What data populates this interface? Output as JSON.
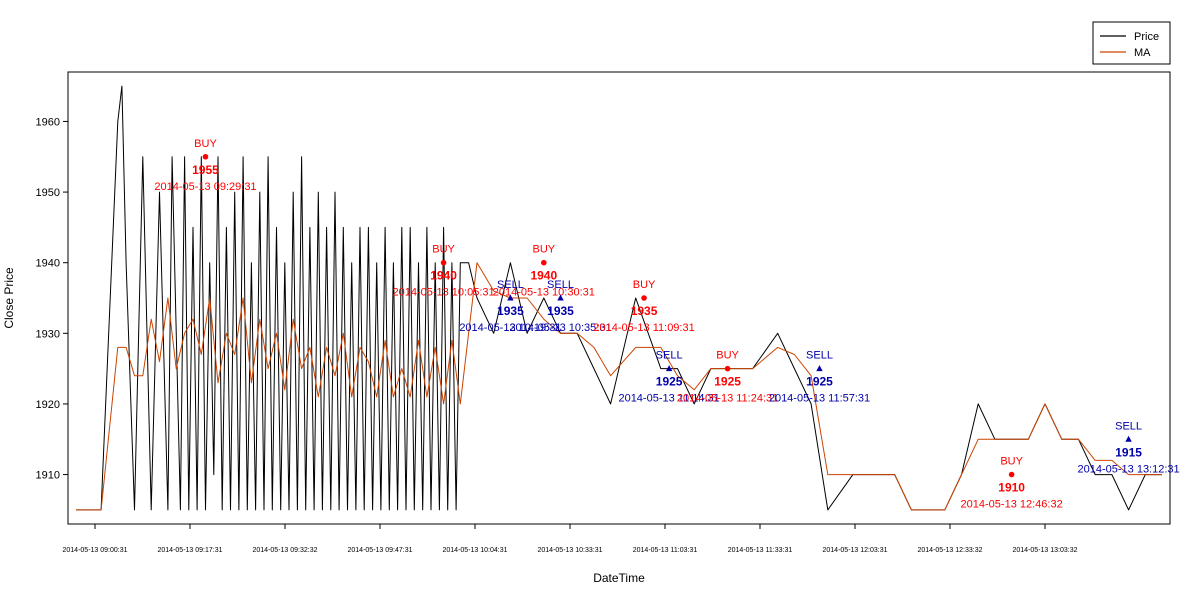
{
  "chart_data": {
    "type": "line",
    "xlabel": "DateTime",
    "ylabel": "Close Price",
    "ylim": [
      1903,
      1967
    ],
    "y_ticks": [
      1910,
      1920,
      1930,
      1940,
      1950,
      1960
    ],
    "x_tick_labels": [
      "2014-05-13 09:00:31",
      "2014-05-13 09:17:31",
      "2014-05-13 09:32:32",
      "2014-05-13 09:47:31",
      "2014-05-13 10:04:31",
      "2014-05-13 10:33:31",
      "2014-05-13 11:03:31",
      "2014-05-13 11:33:31",
      "2014-05-13 12:03:31",
      "2014-05-13 12:33:32",
      "2014-05-13 13:03:32"
    ],
    "legend": {
      "position": "top-right",
      "entries": [
        {
          "name": "Price",
          "color": "#000000"
        },
        {
          "name": "MA",
          "color": "#cc4400"
        }
      ]
    },
    "series": [
      {
        "name": "Price",
        "color": "#000000",
        "x": [
          0,
          6,
          10,
          11,
          12,
          14,
          16,
          18,
          20,
          22,
          23,
          25,
          26,
          27,
          28,
          29,
          30,
          31,
          32,
          33,
          34,
          35,
          36,
          37,
          38,
          39,
          40,
          41,
          42,
          43,
          44,
          45,
          46,
          47,
          48,
          49,
          50,
          51,
          52,
          53,
          54,
          55,
          56,
          57,
          58,
          59,
          60,
          61,
          62,
          63,
          64,
          65,
          66,
          67,
          68,
          69,
          70,
          71,
          72,
          73,
          74,
          75,
          76,
          77,
          78,
          79,
          80,
          81,
          82,
          83,
          84,
          85,
          86,
          87,
          88,
          89,
          90,
          91,
          92,
          93,
          94,
          96,
          100,
          104,
          108,
          112,
          116,
          120,
          124,
          128,
          134,
          140,
          144,
          148,
          152,
          156,
          162,
          168,
          172,
          176,
          180,
          186,
          192,
          196,
          200,
          204,
          208,
          212,
          216,
          220,
          224,
          228,
          232,
          236,
          240,
          244,
          248,
          252,
          256,
          260
        ],
        "y": [
          1905,
          1905,
          1960,
          1965,
          1940,
          1905,
          1955,
          1905,
          1950,
          1905,
          1955,
          1905,
          1955,
          1905,
          1945,
          1905,
          1955,
          1905,
          1940,
          1910,
          1955,
          1905,
          1945,
          1905,
          1950,
          1905,
          1955,
          1905,
          1940,
          1905,
          1950,
          1905,
          1955,
          1905,
          1945,
          1905,
          1940,
          1905,
          1950,
          1905,
          1955,
          1905,
          1945,
          1905,
          1950,
          1905,
          1945,
          1905,
          1950,
          1905,
          1945,
          1905,
          1940,
          1905,
          1945,
          1905,
          1945,
          1905,
          1940,
          1905,
          1945,
          1905,
          1940,
          1905,
          1945,
          1905,
          1945,
          1905,
          1940,
          1905,
          1945,
          1905,
          1940,
          1905,
          1945,
          1905,
          1940,
          1905,
          1940,
          1940,
          1940,
          1935,
          1930,
          1940,
          1930,
          1935,
          1930,
          1930,
          1925,
          1920,
          1935,
          1925,
          1925,
          1920,
          1925,
          1925,
          1925,
          1930,
          1925,
          1920,
          1905,
          1910,
          1910,
          1910,
          1905,
          1905,
          1905,
          1910,
          1920,
          1915,
          1915,
          1915,
          1920,
          1915,
          1915,
          1910,
          1910,
          1905,
          1910,
          1910
        ]
      },
      {
        "name": "MA",
        "color": "#cc4400",
        "x": [
          0,
          6,
          10,
          12,
          14,
          16,
          18,
          20,
          22,
          24,
          26,
          28,
          30,
          32,
          34,
          36,
          38,
          40,
          42,
          44,
          46,
          48,
          50,
          52,
          54,
          56,
          58,
          60,
          62,
          64,
          66,
          68,
          70,
          72,
          74,
          76,
          78,
          80,
          82,
          84,
          86,
          88,
          90,
          92,
          94,
          96,
          100,
          104,
          108,
          112,
          116,
          120,
          124,
          128,
          134,
          140,
          144,
          148,
          152,
          156,
          162,
          168,
          172,
          176,
          180,
          186,
          192,
          196,
          200,
          204,
          208,
          212,
          216,
          220,
          224,
          228,
          232,
          236,
          240,
          244,
          248,
          252,
          256,
          260
        ],
        "y": [
          1905,
          1905,
          1928,
          1928,
          1924,
          1924,
          1932,
          1926,
          1935,
          1925,
          1930,
          1932,
          1927,
          1935,
          1923,
          1930,
          1927,
          1935,
          1923,
          1932,
          1925,
          1930,
          1922,
          1932,
          1925,
          1928,
          1921,
          1928,
          1924,
          1930,
          1921,
          1928,
          1926,
          1921,
          1929,
          1921,
          1925,
          1921,
          1929,
          1921,
          1928,
          1920,
          1929,
          1920,
          1930,
          1940,
          1936,
          1935,
          1935,
          1932,
          1930,
          1930,
          1928,
          1924,
          1928,
          1928,
          1924,
          1922,
          1925,
          1925,
          1925,
          1928,
          1927,
          1924,
          1910,
          1910,
          1910,
          1910,
          1905,
          1905,
          1905,
          1910,
          1915,
          1915,
          1915,
          1915,
          1920,
          1915,
          1915,
          1912,
          1912,
          1910,
          1910,
          1910
        ]
      }
    ],
    "signals": [
      {
        "type": "BUY",
        "x": 31,
        "y": 1955,
        "label": "BUY",
        "value": "1955",
        "time": "2014-05-13 09:29:31"
      },
      {
        "type": "BUY",
        "x": 88,
        "y": 1940,
        "label": "BUY",
        "value": "1940",
        "time": "2014-05-13 10:05:31"
      },
      {
        "type": "BUY",
        "x": 112,
        "y": 1940,
        "label": "BUY",
        "value": "1940",
        "time": "2014-05-13 10:30:31"
      },
      {
        "type": "SELL",
        "x": 104,
        "y": 1935,
        "label": "SELL",
        "value": "1935",
        "time": "2014-05-13 10:19:31"
      },
      {
        "type": "SELL",
        "x": 116,
        "y": 1935,
        "label": "SELL",
        "value": "1935",
        "time": "2014-05-13 10:35:31"
      },
      {
        "type": "BUY",
        "x": 136,
        "y": 1935,
        "label": "BUY",
        "value": "1935",
        "time": "2014-05-13 11:09:31"
      },
      {
        "type": "SELL",
        "x": 142,
        "y": 1925,
        "label": "SELL",
        "value": "1925",
        "time": "2014-05-13 11:14:31"
      },
      {
        "type": "BUY",
        "x": 156,
        "y": 1925,
        "label": "BUY",
        "value": "1925",
        "time": "2014-05-13 11:24:31"
      },
      {
        "type": "SELL",
        "x": 178,
        "y": 1925,
        "label": "SELL",
        "value": "1925",
        "time": "2014-05-13 11:57:31"
      },
      {
        "type": "BUY",
        "x": 224,
        "y": 1910,
        "label": "BUY",
        "value": "1910",
        "time": "2014-05-13 12:46:32"
      },
      {
        "type": "SELL",
        "x": 252,
        "y": 1915,
        "label": "SELL",
        "value": "1915",
        "time": "2014-05-13 13:12:31"
      }
    ]
  }
}
